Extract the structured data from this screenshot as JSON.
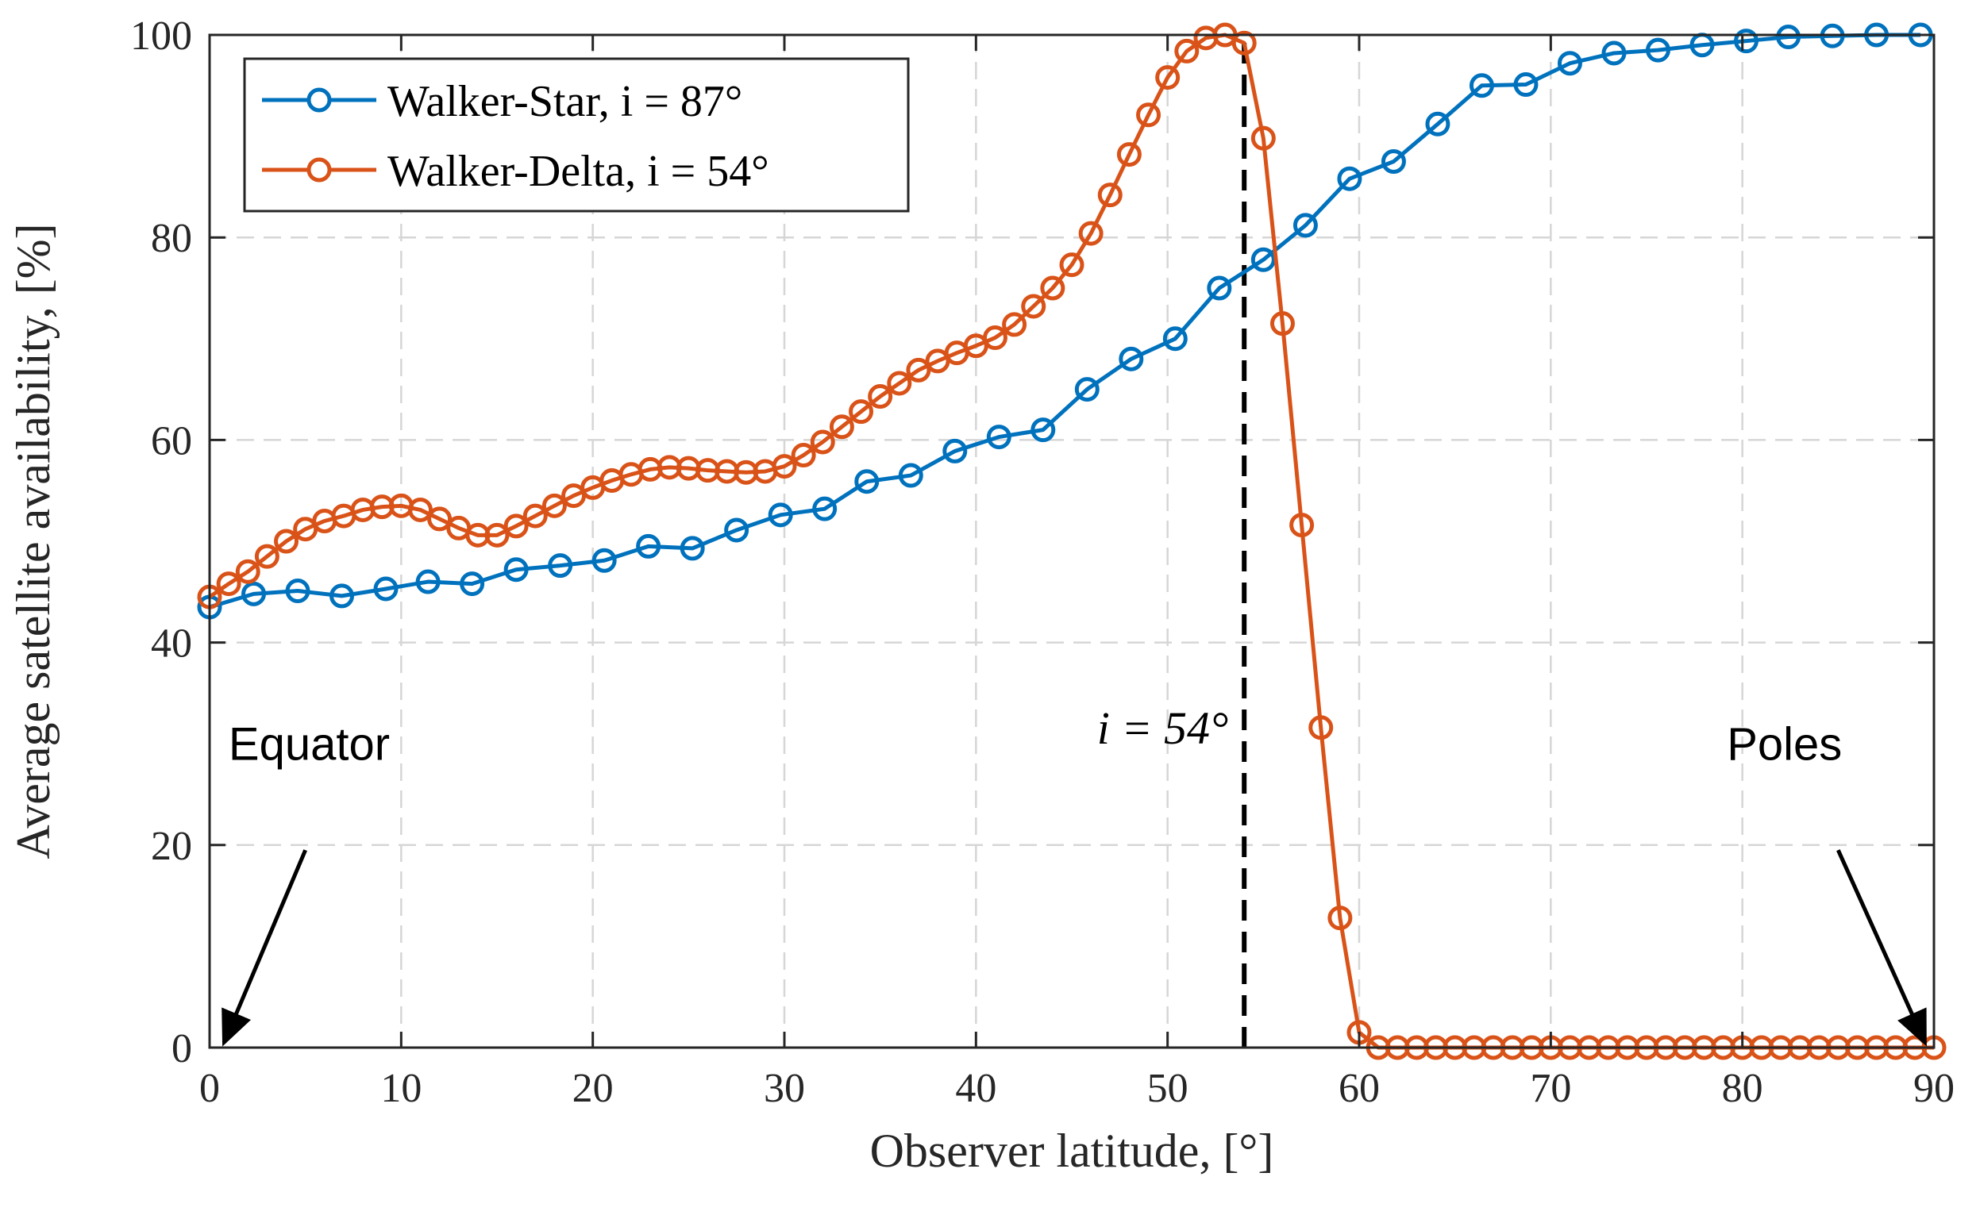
{
  "chart_data": {
    "type": "line",
    "title": "",
    "xlabel": "Observer latitude, [°]",
    "ylabel": "Average satellite availability, [%]",
    "xlim": [
      0,
      90
    ],
    "ylim": [
      0,
      100
    ],
    "xticks": [
      0,
      10,
      20,
      30,
      40,
      50,
      60,
      70,
      80,
      90
    ],
    "yticks": [
      0,
      20,
      40,
      60,
      80,
      100
    ],
    "grid": true,
    "legend_position": "top-left",
    "series": [
      {
        "name": "Walker-Star, i = 87°",
        "color": "#0072BD",
        "marker": "circle",
        "x": [
          0.0,
          2.3,
          4.6,
          6.9,
          9.2,
          11.4,
          13.7,
          16.0,
          18.3,
          20.6,
          22.9,
          25.2,
          27.5,
          29.8,
          32.1,
          34.3,
          36.6,
          38.9,
          41.2,
          43.5,
          45.8,
          48.1,
          50.4,
          52.7,
          55.0,
          57.2,
          59.5,
          61.8,
          64.1,
          66.4,
          68.7,
          71.0,
          73.3,
          75.6,
          77.9,
          80.2,
          82.4,
          84.7,
          87.0,
          89.3
        ],
        "y": [
          43.5,
          44.8,
          45.1,
          44.6,
          45.3,
          46.0,
          45.8,
          47.2,
          47.6,
          48.1,
          49.5,
          49.3,
          51.1,
          52.6,
          53.2,
          55.9,
          56.5,
          58.9,
          60.3,
          61.0,
          65.0,
          68.0,
          70.0,
          75.0,
          77.8,
          81.2,
          85.8,
          87.5,
          91.2,
          95.0,
          95.1,
          97.2,
          98.2,
          98.5,
          99.0,
          99.4,
          99.8,
          99.9,
          100.0,
          100.0
        ]
      },
      {
        "name": "Walker-Delta, i = 54°",
        "color": "#D95319",
        "marker": "circle",
        "x": [
          0.0,
          1.0,
          2.0,
          3.0,
          4.0,
          5.0,
          6.0,
          7.0,
          8.0,
          9.0,
          10.0,
          11.0,
          12.0,
          13.0,
          14.0,
          15.0,
          16.0,
          17.0,
          18.0,
          19.0,
          20.0,
          21.0,
          22.0,
          23.0,
          24.0,
          25.0,
          26.0,
          27.0,
          28.0,
          29.0,
          30.0,
          31.0,
          32.0,
          33.0,
          34.0,
          35.0,
          36.0,
          37.0,
          38.0,
          39.0,
          40.0,
          41.0,
          42.0,
          43.0,
          44.0,
          45.0,
          46.0,
          47.0,
          48.0,
          49.0,
          50.0,
          51.0,
          52.0,
          53.0,
          54.0,
          55.0,
          56.0,
          57.0,
          58.0,
          59.0,
          60.0,
          61.0,
          62.0,
          63.0,
          64.0,
          65.0,
          66.0,
          67.0,
          68.0,
          69.0,
          70.0,
          71.0,
          72.0,
          73.0,
          74.0,
          75.0,
          76.0,
          77.0,
          78.0,
          79.0,
          80.0,
          81.0,
          82.0,
          83.0,
          84.0,
          85.0,
          86.0,
          87.0,
          88.0,
          89.0,
          90.0
        ],
        "y": [
          44.5,
          45.8,
          47.0,
          48.5,
          50.0,
          51.2,
          52.0,
          52.5,
          53.1,
          53.4,
          53.5,
          53.1,
          52.2,
          51.3,
          50.6,
          50.6,
          51.5,
          52.5,
          53.5,
          54.5,
          55.3,
          56.0,
          56.6,
          57.1,
          57.3,
          57.2,
          57.0,
          56.9,
          56.8,
          56.9,
          57.4,
          58.5,
          59.8,
          61.3,
          62.8,
          64.3,
          65.6,
          66.9,
          67.8,
          68.6,
          69.3,
          70.1,
          71.4,
          73.2,
          75.0,
          77.3,
          80.4,
          84.2,
          88.2,
          92.1,
          95.8,
          98.4,
          99.7,
          100.0,
          99.2,
          89.8,
          71.5,
          51.6,
          31.6,
          12.8,
          1.5,
          0.0,
          0.0,
          0.0,
          0.0,
          0.0,
          0.0,
          0.0,
          0.0,
          0.0,
          0.0,
          0.0,
          0.0,
          0.0,
          0.0,
          0.0,
          0.0,
          0.0,
          0.0,
          0.0,
          0.0,
          0.0,
          0.0,
          0.0,
          0.0,
          0.0,
          0.0,
          0.0,
          0.0,
          0.0,
          0.0
        ]
      }
    ],
    "vline": {
      "x": 54,
      "color": "#000000",
      "style": "dashed",
      "label": "i = 54°"
    },
    "annotations": [
      {
        "text": "Equator",
        "arrow_to": [
          0.5,
          0
        ],
        "arrow_from": [
          5,
          19.5
        ]
      },
      {
        "text": "Poles",
        "arrow_to": [
          89.7,
          0
        ],
        "arrow_from": [
          85,
          19.5
        ]
      }
    ]
  }
}
